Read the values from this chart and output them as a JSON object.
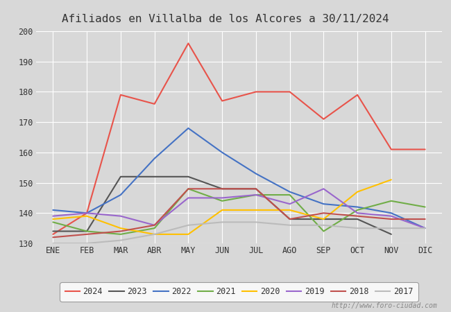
{
  "title": "Afiliados en Villalba de los Alcores a 30/11/2024",
  "title_color": "#333333",
  "xlabel": "",
  "ylabel": "",
  "ylim": [
    130,
    200
  ],
  "yticks": [
    130,
    140,
    150,
    160,
    170,
    180,
    190,
    200
  ],
  "months": [
    "ENE",
    "FEB",
    "MAR",
    "ABR",
    "MAY",
    "JUN",
    "JUL",
    "AGO",
    "SEP",
    "OCT",
    "NOV",
    "DIC"
  ],
  "background_color": "#d8d8d8",
  "plot_bg_color": "#d8d8d8",
  "grid_color": "#ffffff",
  "watermark": "http://www.foro-ciudad.com",
  "series": {
    "2024": {
      "color": "#e8534a",
      "linewidth": 1.5,
      "values": [
        133,
        140,
        179,
        176,
        196,
        177,
        180,
        180,
        171,
        179,
        161,
        161
      ]
    },
    "2023": {
      "color": "#555555",
      "linewidth": 1.5,
      "values": [
        134,
        134,
        152,
        152,
        152,
        148,
        148,
        138,
        138,
        138,
        133,
        null
      ]
    },
    "2022": {
      "color": "#4472c4",
      "linewidth": 1.5,
      "values": [
        141,
        140,
        146,
        158,
        168,
        160,
        153,
        147,
        143,
        142,
        140,
        135
      ]
    },
    "2021": {
      "color": "#70ad47",
      "linewidth": 1.5,
      "values": [
        137,
        134,
        133,
        135,
        148,
        144,
        146,
        146,
        134,
        141,
        144,
        142
      ]
    },
    "2020": {
      "color": "#ffc000",
      "linewidth": 1.5,
      "values": [
        138,
        139,
        135,
        133,
        133,
        141,
        141,
        141,
        138,
        147,
        151,
        null
      ]
    },
    "2019": {
      "color": "#9966cc",
      "linewidth": 1.5,
      "values": [
        139,
        140,
        139,
        136,
        145,
        145,
        146,
        143,
        148,
        140,
        139,
        135
      ]
    },
    "2018": {
      "color": "#c0504d",
      "linewidth": 1.5,
      "values": [
        132,
        133,
        134,
        136,
        148,
        148,
        148,
        138,
        140,
        139,
        138,
        138
      ]
    },
    "2017": {
      "color": "#bbbbbb",
      "linewidth": 1.5,
      "values": [
        130,
        130,
        131,
        133,
        136,
        137,
        137,
        136,
        136,
        135,
        135,
        135
      ]
    }
  },
  "legend_order": [
    "2024",
    "2023",
    "2022",
    "2021",
    "2020",
    "2019",
    "2018",
    "2017"
  ]
}
